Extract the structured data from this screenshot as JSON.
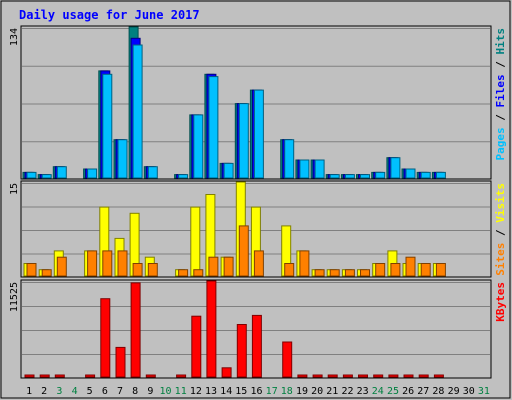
{
  "chart_data": [
    {
      "type": "bar",
      "panel": "top",
      "title": "Daily usage for June 2017",
      "ymax_label": "134",
      "ylim": [
        0,
        134
      ],
      "right_label": [
        "Pages",
        "Files",
        "Hits"
      ],
      "categories": [
        "1",
        "2",
        "3",
        "4",
        "5",
        "6",
        "7",
        "8",
        "9",
        "10",
        "11",
        "12",
        "13",
        "14",
        "15",
        "16",
        "17",
        "18",
        "19",
        "20",
        "21",
        "22",
        "23",
        "24",
        "25",
        "26",
        "27",
        "28",
        "29",
        "30",
        "31"
      ],
      "series": [
        {
          "name": "Hits",
          "color": "#008080",
          "values": [
            5,
            3,
            10,
            0,
            8,
            95,
            34,
            134,
            10,
            0,
            3,
            56,
            92,
            13,
            66,
            78,
            0,
            34,
            16,
            16,
            3,
            3,
            3,
            5,
            18,
            8,
            5,
            5,
            0,
            0,
            0
          ]
        },
        {
          "name": "Files",
          "color": "#0000ff",
          "values": [
            5,
            3,
            10,
            0,
            8,
            95,
            34,
            124,
            10,
            0,
            3,
            56,
            92,
            13,
            66,
            78,
            0,
            34,
            16,
            16,
            3,
            3,
            3,
            5,
            18,
            8,
            5,
            5,
            0,
            0,
            0
          ]
        },
        {
          "name": "Pages",
          "color": "#00c0ff",
          "values": [
            5,
            3,
            10,
            0,
            8,
            92,
            34,
            118,
            10,
            0,
            3,
            56,
            90,
            13,
            66,
            78,
            0,
            34,
            16,
            16,
            3,
            3,
            3,
            5,
            18,
            8,
            5,
            5,
            0,
            0,
            0
          ]
        }
      ],
      "grid": true
    },
    {
      "type": "bar",
      "panel": "middle",
      "ymax_label": "15",
      "ylim": [
        0,
        15
      ],
      "right_label": [
        "Sites",
        "Visits"
      ],
      "categories": [
        "1",
        "2",
        "3",
        "4",
        "5",
        "6",
        "7",
        "8",
        "9",
        "10",
        "11",
        "12",
        "13",
        "14",
        "15",
        "16",
        "17",
        "18",
        "19",
        "20",
        "21",
        "22",
        "23",
        "24",
        "25",
        "26",
        "27",
        "28",
        "29",
        "30",
        "31"
      ],
      "series": [
        {
          "name": "Visits",
          "color": "#ffff00",
          "values": [
            2,
            1,
            4,
            0,
            4,
            11,
            6,
            10,
            3,
            0,
            1,
            11,
            13,
            3,
            15,
            11,
            0,
            8,
            4,
            1,
            1,
            1,
            1,
            2,
            4,
            2,
            2,
            2,
            0,
            0,
            0
          ]
        },
        {
          "name": "Sites",
          "color": "#ff8000",
          "values": [
            2,
            1,
            3,
            0,
            4,
            4,
            4,
            2,
            2,
            0,
            1,
            1,
            3,
            3,
            8,
            4,
            0,
            2,
            4,
            1,
            1,
            1,
            1,
            2,
            2,
            3,
            2,
            2,
            0,
            0,
            0
          ]
        }
      ],
      "grid": true
    },
    {
      "type": "bar",
      "panel": "bottom",
      "ymax_label": "11525",
      "ylim": [
        0,
        11525
      ],
      "right_label": [
        "KBytes"
      ],
      "categories": [
        "1",
        "2",
        "3",
        "4",
        "5",
        "6",
        "7",
        "8",
        "9",
        "10",
        "11",
        "12",
        "13",
        "14",
        "15",
        "16",
        "17",
        "18",
        "19",
        "20",
        "21",
        "22",
        "23",
        "24",
        "25",
        "26",
        "27",
        "28",
        "29",
        "30",
        "31"
      ],
      "weekend_days": [
        3,
        4,
        10,
        11,
        17,
        18,
        24,
        25,
        31
      ],
      "series": [
        {
          "name": "KBytes",
          "color": "#ff0000",
          "values": [
            150,
            150,
            150,
            0,
            150,
            9400,
            3550,
            11300,
            150,
            0,
            150,
            7300,
            11525,
            1100,
            6300,
            7400,
            0,
            4200,
            150,
            150,
            150,
            150,
            150,
            150,
            150,
            150,
            150,
            150,
            0,
            0,
            0
          ]
        }
      ],
      "grid": true
    }
  ],
  "colors": {
    "background": "#c0c0c0",
    "title": "#0000ff",
    "pages": "#00c0ff",
    "files": "#0000ff",
    "hits": "#008080",
    "sites": "#ff8000",
    "visits": "#ffff00",
    "kbytes": "#ff0000",
    "weekday_label": "#000000",
    "weekend_label": "#008040"
  }
}
